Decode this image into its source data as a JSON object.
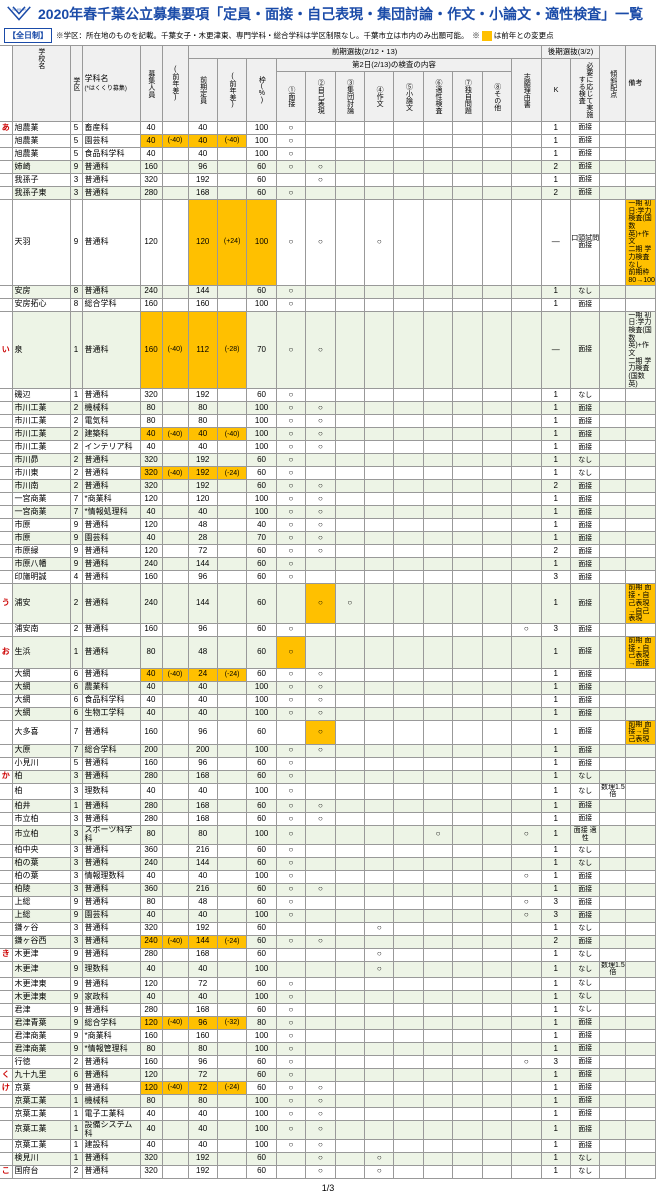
{
  "title": "2020年春千葉公立募集要項「定員・面接・自己表現・集団討論・作文・小論文・適性検査」一覧",
  "zenjitsu": "【全日制】",
  "note": "※学区：所在地のものを記載。千葉女子・木更津東、専門学科・総合学科は学区制限なし。千葉市立は市内のみ出願可能。　※",
  "note2": "は前年との変更点",
  "page": "1/3",
  "h": {
    "school": "学校名",
    "ward": "学区",
    "dept": "学科名",
    "deptNote": "(*はくくり募集)",
    "cap": "募集人員",
    "capDiff": "(前年差)",
    "zenki": "前期選抜(2/12・13)",
    "zcap": "前期定員",
    "zdiff": "(前年差)",
    "waku": "枠(%)",
    "day2": "第2日(2/13)の検査の内容",
    "c1": "①面接",
    "c2": "②自己表現",
    "c3": "③集団討論",
    "c4": "④作文",
    "c5": "⑤小論文",
    "c6": "⑥適性検査",
    "c7": "⑦独自問題",
    "c8": "⑧その他",
    "shibo": "志願理由書",
    "kouki": "後期選抜(3/2)",
    "K": "K",
    "resp": "必要に応じて実施する検査",
    "keisha": "傾斜配点",
    "biko": "備考"
  },
  "rows": [
    {
      "i": "あ",
      "s": "旭農業",
      "w": "5",
      "d": "畜産科",
      "cap": "40",
      "zc": "40",
      "wk": "100",
      "c1": "○",
      "k": "1",
      "r": "面接"
    },
    {
      "s": "旭農業",
      "w": "5",
      "d": "園芸科",
      "cap": "40",
      "cd": "(-40)",
      "cdh": 1,
      "zc": "40",
      "zd": "(-40)",
      "zch": 1,
      "wk": "100",
      "c1": "○",
      "k": "1",
      "r": "面接"
    },
    {
      "s": "旭農業",
      "w": "5",
      "d": "食品科学科",
      "cap": "40",
      "zc": "40",
      "wk": "100",
      "c1": "○",
      "k": "1",
      "r": "面接"
    },
    {
      "s": "姉崎",
      "w": "9",
      "d": "普通科",
      "cap": "160",
      "zc": "96",
      "wk": "60",
      "c1": "○",
      "c2": "○",
      "k": "2",
      "r": "面接",
      "alt": 1
    },
    {
      "s": "我孫子",
      "w": "3",
      "d": "普通科",
      "cap": "320",
      "zc": "192",
      "wk": "60",
      "c2": "○",
      "k": "1",
      "r": "面接"
    },
    {
      "s": "我孫子東",
      "w": "3",
      "d": "普通科",
      "cap": "280",
      "zc": "168",
      "wk": "60",
      "c1": "○",
      "k": "2",
      "r": "面接",
      "alt": 1
    },
    {
      "s": "天羽",
      "w": "9",
      "d": "普通科",
      "cap": "120",
      "zc": "120",
      "zd": "(+24)",
      "zch": 1,
      "wk": "100",
      "wkh": 1,
      "c1": "○",
      "c2": "○",
      "c4": "○",
      "k": "―",
      "r": "口頭試問 面接",
      "b": "一期 初日:学力検査(国数英)+作文\n二期 学力検査なし\n前期枠80→100%",
      "bh": 1
    },
    {
      "s": "安房",
      "w": "8",
      "d": "普通科",
      "cap": "240",
      "zc": "144",
      "wk": "60",
      "c1": "○",
      "k": "1",
      "r": "なし",
      "alt": 1
    },
    {
      "s": "安房拓心",
      "w": "8",
      "d": "総合学科",
      "cap": "160",
      "zc": "160",
      "wk": "100",
      "c1": "○",
      "k": "1",
      "r": "面接"
    },
    {
      "i": "い",
      "s": "泉",
      "w": "1",
      "d": "普通科",
      "cap": "160",
      "cd": "(-40)",
      "cdh": 1,
      "zc": "112",
      "zd": "(-28)",
      "zch": 1,
      "wk": "70",
      "c1": "○",
      "c2": "○",
      "k": "―",
      "r": "面接",
      "b": "一期 初日:学力検査(国数英)+作文\n二期 学力検査(国数英)",
      "alt": 1
    },
    {
      "s": "磯辺",
      "w": "1",
      "d": "普通科",
      "cap": "320",
      "zc": "192",
      "wk": "60",
      "c1": "○",
      "k": "1",
      "r": "なし"
    },
    {
      "s": "市川工業",
      "w": "2",
      "d": "機械科",
      "cap": "80",
      "zc": "80",
      "wk": "100",
      "c1": "○",
      "c2": "○",
      "k": "1",
      "r": "面接",
      "alt": 1
    },
    {
      "s": "市川工業",
      "w": "2",
      "d": "電気科",
      "cap": "80",
      "zc": "80",
      "wk": "100",
      "c1": "○",
      "c2": "○",
      "k": "1",
      "r": "面接"
    },
    {
      "s": "市川工業",
      "w": "2",
      "d": "建築科",
      "cap": "40",
      "cd": "(-40)",
      "cdh": 1,
      "zc": "40",
      "zd": "(-40)",
      "zch": 1,
      "wk": "100",
      "c1": "○",
      "c2": "○",
      "k": "1",
      "r": "面接",
      "alt": 1
    },
    {
      "s": "市川工業",
      "w": "2",
      "d": "インテリア科",
      "cap": "40",
      "zc": "40",
      "wk": "100",
      "c1": "○",
      "c2": "○",
      "k": "1",
      "r": "面接"
    },
    {
      "s": "市川昴",
      "w": "2",
      "d": "普通科",
      "cap": "320",
      "zc": "192",
      "wk": "60",
      "c1": "○",
      "k": "1",
      "r": "なし",
      "alt": 1
    },
    {
      "s": "市川東",
      "w": "2",
      "d": "普通科",
      "cap": "320",
      "cd": "(-40)",
      "cdh": 1,
      "zc": "192",
      "zd": "(-24)",
      "zch": 1,
      "wk": "60",
      "c1": "○",
      "k": "1",
      "r": "なし"
    },
    {
      "s": "市川南",
      "w": "2",
      "d": "普通科",
      "cap": "320",
      "zc": "192",
      "wk": "60",
      "c1": "○",
      "c2": "○",
      "k": "2",
      "r": "面接",
      "alt": 1
    },
    {
      "s": "一宮商業",
      "w": "7",
      "d": "*商業科",
      "cap": "120",
      "zc": "120",
      "wk": "100",
      "c1": "○",
      "c2": "○",
      "k": "1",
      "r": "面接"
    },
    {
      "s": "一宮商業",
      "w": "7",
      "d": "*情報処理科",
      "cap": "40",
      "zc": "40",
      "wk": "100",
      "c1": "○",
      "c2": "○",
      "k": "1",
      "r": "面接",
      "alt": 1
    },
    {
      "s": "市原",
      "w": "9",
      "d": "普通科",
      "cap": "120",
      "zc": "48",
      "wk": "40",
      "c1": "○",
      "c2": "○",
      "k": "1",
      "r": "面接"
    },
    {
      "s": "市原",
      "w": "9",
      "d": "園芸科",
      "cap": "40",
      "zc": "28",
      "wk": "70",
      "c1": "○",
      "c2": "○",
      "k": "1",
      "r": "面接",
      "alt": 1
    },
    {
      "s": "市原緑",
      "w": "9",
      "d": "普通科",
      "cap": "120",
      "zc": "72",
      "wk": "60",
      "c1": "○",
      "c2": "○",
      "k": "2",
      "r": "面接"
    },
    {
      "s": "市原八幡",
      "w": "9",
      "d": "普通科",
      "cap": "240",
      "zc": "144",
      "wk": "60",
      "c1": "○",
      "k": "1",
      "r": "面接",
      "alt": 1
    },
    {
      "s": "印旛明誠",
      "w": "4",
      "d": "普通科",
      "cap": "160",
      "zc": "96",
      "wk": "60",
      "c1": "○",
      "k": "3",
      "r": "面接"
    },
    {
      "i": "う",
      "s": "浦安",
      "w": "2",
      "d": "普通科",
      "cap": "240",
      "zc": "144",
      "wk": "60",
      "c2": "○",
      "c2h": 1,
      "c3": "○",
      "k": "1",
      "r": "面接",
      "b": "前期 面接・自己表現→自己表現",
      "bh": 1,
      "alt": 1
    },
    {
      "s": "浦安南",
      "w": "2",
      "d": "普通科",
      "cap": "160",
      "zc": "96",
      "wk": "60",
      "c1": "○",
      "sh": "○",
      "k": "3",
      "r": "面接"
    },
    {
      "i": "お",
      "s": "生浜",
      "w": "1",
      "d": "普通科",
      "cap": "80",
      "zc": "48",
      "wk": "60",
      "c1": "○",
      "c1h": 1,
      "k": "1",
      "r": "面接",
      "b": "前期 面接・自己表現→面接",
      "bh": 1,
      "alt": 1
    },
    {
      "s": "大網",
      "w": "6",
      "d": "普通科",
      "cap": "40",
      "cd": "(-40)",
      "cdh": 1,
      "zc": "24",
      "zd": "(-24)",
      "zch": 1,
      "wk": "60",
      "c1": "○",
      "c2": "○",
      "k": "1",
      "r": "面接"
    },
    {
      "s": "大網",
      "w": "6",
      "d": "農業科",
      "cap": "40",
      "zc": "40",
      "wk": "100",
      "c1": "○",
      "c2": "○",
      "k": "1",
      "r": "面接",
      "alt": 1
    },
    {
      "s": "大網",
      "w": "6",
      "d": "食品科学科",
      "cap": "40",
      "zc": "40",
      "wk": "100",
      "c1": "○",
      "c2": "○",
      "k": "1",
      "r": "面接"
    },
    {
      "s": "大網",
      "w": "6",
      "d": "生物工学科",
      "cap": "40",
      "zc": "40",
      "wk": "100",
      "c1": "○",
      "c2": "○",
      "k": "1",
      "r": "面接",
      "alt": 1
    },
    {
      "s": "大多喜",
      "w": "7",
      "d": "普通科",
      "cap": "160",
      "zc": "96",
      "wk": "60",
      "c2": "○",
      "c2h": 1,
      "k": "1",
      "r": "面接",
      "b": "前期 面接→自己表現",
      "bh": 1
    },
    {
      "s": "大原",
      "w": "7",
      "d": "総合学科",
      "cap": "200",
      "zc": "200",
      "wk": "100",
      "c1": "○",
      "c2": "○",
      "k": "1",
      "r": "面接",
      "alt": 1
    },
    {
      "s": "小見川",
      "w": "5",
      "d": "普通科",
      "cap": "160",
      "zc": "96",
      "wk": "60",
      "c1": "○",
      "k": "1",
      "r": "面接"
    },
    {
      "i": "か",
      "s": "柏",
      "w": "3",
      "d": "普通科",
      "cap": "280",
      "zc": "168",
      "wk": "60",
      "c1": "○",
      "k": "1",
      "r": "なし",
      "alt": 1
    },
    {
      "s": "柏",
      "w": "3",
      "d": "理数科",
      "cap": "40",
      "zc": "40",
      "wk": "100",
      "c1": "○",
      "k": "1",
      "r": "なし",
      "ks": "数理1.5倍"
    },
    {
      "s": "柏井",
      "w": "1",
      "d": "普通科",
      "cap": "280",
      "zc": "168",
      "wk": "60",
      "c1": "○",
      "c2": "○",
      "k": "1",
      "r": "面接",
      "alt": 1
    },
    {
      "s": "市立柏",
      "w": "3",
      "d": "普通科",
      "cap": "280",
      "zc": "168",
      "wk": "60",
      "c1": "○",
      "c2": "○",
      "k": "1",
      "r": "面接"
    },
    {
      "s": "市立柏",
      "w": "3",
      "d": "スポーツ科学科",
      "cap": "80",
      "zc": "80",
      "wk": "100",
      "c1": "○",
      "c6": "○",
      "sh": "○",
      "k": "1",
      "r": "面接 適性",
      "alt": 1
    },
    {
      "s": "柏中央",
      "w": "3",
      "d": "普通科",
      "cap": "360",
      "zc": "216",
      "wk": "60",
      "c1": "○",
      "k": "1",
      "r": "なし"
    },
    {
      "s": "柏の葉",
      "w": "3",
      "d": "普通科",
      "cap": "240",
      "zc": "144",
      "wk": "60",
      "c1": "○",
      "k": "1",
      "r": "なし",
      "alt": 1
    },
    {
      "s": "柏の葉",
      "w": "3",
      "d": "情報理数科",
      "cap": "40",
      "zc": "40",
      "wk": "100",
      "c1": "○",
      "sh": "○",
      "k": "1",
      "r": "面接"
    },
    {
      "s": "柏陵",
      "w": "3",
      "d": "普通科",
      "cap": "360",
      "zc": "216",
      "wk": "60",
      "c1": "○",
      "c2": "○",
      "k": "1",
      "r": "面接",
      "alt": 1
    },
    {
      "s": "上総",
      "w": "9",
      "d": "普通科",
      "cap": "80",
      "zc": "48",
      "wk": "60",
      "c1": "○",
      "sh": "○",
      "k": "3",
      "r": "面接"
    },
    {
      "s": "上総",
      "w": "9",
      "d": "園芸科",
      "cap": "40",
      "zc": "40",
      "wk": "100",
      "c1": "○",
      "sh": "○",
      "k": "3",
      "r": "面接",
      "alt": 1
    },
    {
      "s": "鎌ヶ谷",
      "w": "3",
      "d": "普通科",
      "cap": "320",
      "zc": "192",
      "wk": "60",
      "c4": "○",
      "k": "1",
      "r": "なし"
    },
    {
      "s": "鎌ヶ谷西",
      "w": "3",
      "d": "普通科",
      "cap": "240",
      "cd": "(-40)",
      "cdh": 1,
      "zc": "144",
      "zd": "(-24)",
      "zch": 1,
      "wk": "60",
      "c1": "○",
      "c2": "○",
      "k": "2",
      "r": "面接",
      "alt": 1
    },
    {
      "i": "き",
      "s": "木更津",
      "w": "9",
      "d": "普通科",
      "cap": "280",
      "zc": "168",
      "wk": "60",
      "c4": "○",
      "k": "1",
      "r": "なし"
    },
    {
      "s": "木更津",
      "w": "9",
      "d": "理数科",
      "cap": "40",
      "zc": "40",
      "wk": "100",
      "c4": "○",
      "k": "1",
      "r": "なし",
      "ks": "数理1.5倍",
      "alt": 1
    },
    {
      "s": "木更津東",
      "w": "9",
      "d": "普通科",
      "cap": "120",
      "zc": "72",
      "wk": "60",
      "c1": "○",
      "k": "1",
      "r": "なし"
    },
    {
      "s": "木更津東",
      "w": "9",
      "d": "家政科",
      "cap": "40",
      "zc": "40",
      "wk": "100",
      "c1": "○",
      "k": "1",
      "r": "なし",
      "alt": 1
    },
    {
      "s": "君津",
      "w": "9",
      "d": "普通科",
      "cap": "280",
      "zc": "168",
      "wk": "60",
      "c1": "○",
      "k": "1",
      "r": "なし"
    },
    {
      "s": "君津青葉",
      "w": "9",
      "d": "総合学科",
      "cap": "120",
      "cd": "(-40)",
      "cdh": 1,
      "zc": "96",
      "zd": "(-32)",
      "zch": 1,
      "wk": "80",
      "c1": "○",
      "k": "1",
      "r": "面接",
      "alt": 1
    },
    {
      "s": "君津商業",
      "w": "9",
      "d": "*商業科",
      "cap": "160",
      "zc": "160",
      "wk": "100",
      "c1": "○",
      "k": "1",
      "r": "面接"
    },
    {
      "s": "君津商業",
      "w": "9",
      "d": "*情報管理科",
      "cap": "80",
      "zc": "80",
      "wk": "100",
      "c1": "○",
      "k": "1",
      "r": "面接",
      "alt": 1
    },
    {
      "s": "行徳",
      "w": "2",
      "d": "普通科",
      "cap": "160",
      "zc": "96",
      "wk": "60",
      "c1": "○",
      "sh": "○",
      "k": "3",
      "r": "面接"
    },
    {
      "i": "く",
      "s": "九十九里",
      "w": "6",
      "d": "普通科",
      "cap": "120",
      "zc": "72",
      "wk": "60",
      "c1": "○",
      "k": "1",
      "r": "面接",
      "alt": 1
    },
    {
      "i": "け",
      "s": "京葉",
      "w": "9",
      "d": "普通科",
      "cap": "120",
      "cd": "(-40)",
      "cdh": 1,
      "zc": "72",
      "zd": "(-24)",
      "zch": 1,
      "wk": "60",
      "c1": "○",
      "c2": "○",
      "k": "1",
      "r": "面接"
    },
    {
      "s": "京葉工業",
      "w": "1",
      "d": "機械科",
      "cap": "80",
      "zc": "80",
      "wk": "100",
      "c1": "○",
      "c2": "○",
      "k": "1",
      "r": "面接",
      "alt": 1
    },
    {
      "s": "京葉工業",
      "w": "1",
      "d": "電子工業科",
      "cap": "40",
      "zc": "40",
      "wk": "100",
      "c1": "○",
      "c2": "○",
      "k": "1",
      "r": "面接"
    },
    {
      "s": "京葉工業",
      "w": "1",
      "d": "設備システム科",
      "cap": "40",
      "zc": "40",
      "wk": "100",
      "c1": "○",
      "c2": "○",
      "k": "1",
      "r": "面接",
      "alt": 1
    },
    {
      "s": "京葉工業",
      "w": "1",
      "d": "建設科",
      "cap": "40",
      "zc": "40",
      "wk": "100",
      "c1": "○",
      "c2": "○",
      "k": "1",
      "r": "面接"
    },
    {
      "s": "検見川",
      "w": "1",
      "d": "普通科",
      "cap": "320",
      "zc": "192",
      "wk": "60",
      "c2": "○",
      "c4": "○",
      "k": "1",
      "r": "なし",
      "alt": 1
    },
    {
      "i": "こ",
      "s": "国府台",
      "w": "2",
      "d": "普通科",
      "cap": "320",
      "zc": "192",
      "wk": "60",
      "c2": "○",
      "c4": "○",
      "k": "1",
      "r": "なし"
    }
  ]
}
